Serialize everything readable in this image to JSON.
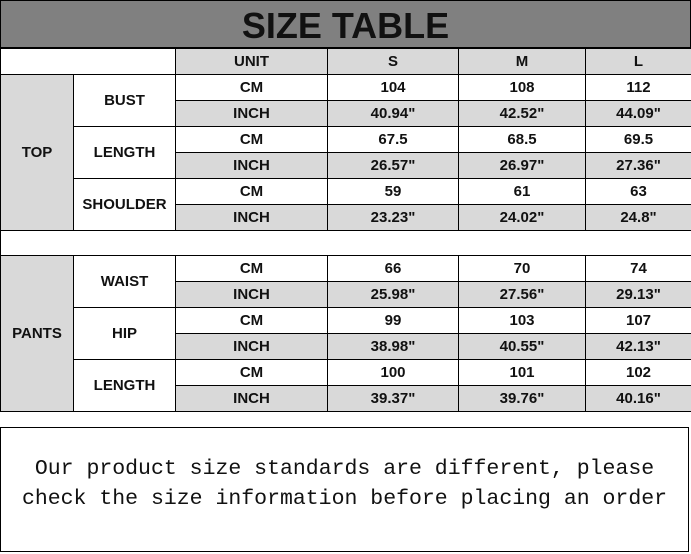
{
  "title": "SIZE TABLE",
  "header": {
    "unit": "UNIT",
    "sizes": [
      "S",
      "M",
      "L"
    ]
  },
  "units": {
    "cm": "CM",
    "inch": "INCH"
  },
  "top": {
    "label": "TOP",
    "rows": [
      {
        "name": "BUST",
        "cm": [
          "104",
          "108",
          "112"
        ],
        "inch": [
          "40.94\"",
          "42.52\"",
          "44.09\""
        ]
      },
      {
        "name": "LENGTH",
        "cm": [
          "67.5",
          "68.5",
          "69.5"
        ],
        "inch": [
          "26.57\"",
          "26.97\"",
          "27.36\""
        ]
      },
      {
        "name": "SHOULDER",
        "cm": [
          "59",
          "61",
          "63"
        ],
        "inch": [
          "23.23\"",
          "24.02\"",
          "24.8\""
        ]
      }
    ]
  },
  "pants": {
    "label": "PANTS",
    "rows": [
      {
        "name": "WAIST",
        "cm": [
          "66",
          "70",
          "74"
        ],
        "inch": [
          "25.98\"",
          "27.56\"",
          "29.13\""
        ]
      },
      {
        "name": "HIP",
        "cm": [
          "99",
          "103",
          "107"
        ],
        "inch": [
          "38.98\"",
          "40.55\"",
          "42.13\""
        ]
      },
      {
        "name": "LENGTH",
        "cm": [
          "100",
          "101",
          "102"
        ],
        "inch": [
          "39.37\"",
          "39.76\"",
          "40.16\""
        ]
      }
    ]
  },
  "note": {
    "line1": "Our product size standards are different, please",
    "line2": "check the size information before placing an order"
  }
}
